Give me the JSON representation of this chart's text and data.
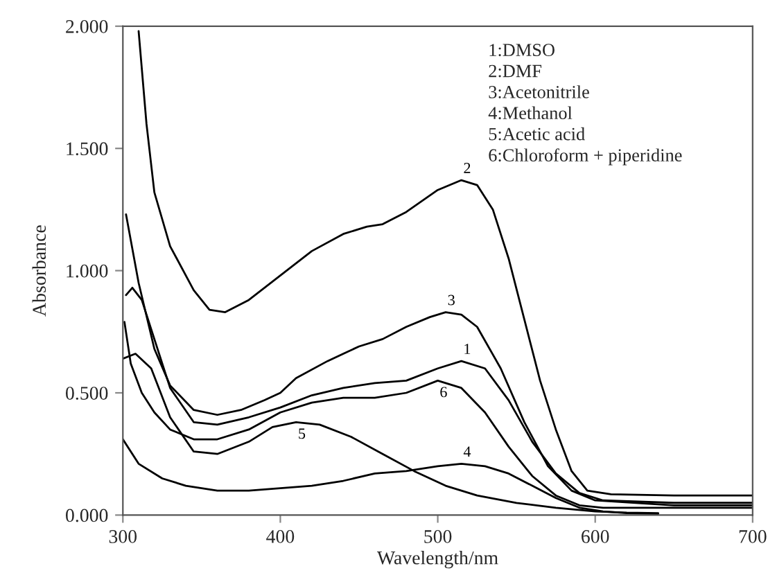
{
  "chart_data": {
    "type": "line",
    "xlabel": "Wavelength/nm",
    "ylabel": "Absorbance",
    "xlim": [
      300,
      700
    ],
    "xticks": [
      300,
      400,
      500,
      600,
      700
    ],
    "ylim": [
      0,
      2
    ],
    "yticks": [
      {
        "value": 0,
        "label": "0.000"
      },
      {
        "value": 0.5,
        "label": "0.500"
      },
      {
        "value": 1,
        "label": "1.000"
      },
      {
        "value": 1.5,
        "label": "1.500"
      },
      {
        "value": 2,
        "label": "2.000"
      }
    ],
    "grid": false,
    "legend": false,
    "marker": "none",
    "line_style": "solid",
    "annotations": [
      "1:DMSO",
      "2:DMF",
      "3:Acetonitrile",
      "4:Methanol",
      "5:Acetic acid",
      "6:Chloroform + piperidine"
    ],
    "series": [
      {
        "name": "1",
        "color": "#000000",
        "x": [
          302,
          306,
          312,
          320,
          330,
          345,
          360,
          380,
          400,
          420,
          440,
          460,
          480,
          500,
          515,
          530,
          545,
          560,
          575,
          590,
          605,
          650,
          700
        ],
        "values": [
          0.9,
          0.93,
          0.88,
          0.72,
          0.52,
          0.38,
          0.37,
          0.4,
          0.44,
          0.49,
          0.52,
          0.54,
          0.55,
          0.6,
          0.63,
          0.6,
          0.47,
          0.3,
          0.17,
          0.09,
          0.06,
          0.05,
          0.05
        ]
      },
      {
        "name": "2",
        "color": "#000000",
        "x": [
          310,
          315,
          320,
          330,
          345,
          355,
          365,
          380,
          400,
          420,
          440,
          455,
          465,
          480,
          500,
          515,
          525,
          535,
          545,
          555,
          565,
          575,
          585,
          595,
          610,
          650,
          700
        ],
        "values": [
          1.98,
          1.6,
          1.32,
          1.1,
          0.92,
          0.84,
          0.83,
          0.88,
          0.98,
          1.08,
          1.15,
          1.18,
          1.19,
          1.24,
          1.33,
          1.37,
          1.35,
          1.25,
          1.05,
          0.8,
          0.55,
          0.35,
          0.18,
          0.1,
          0.085,
          0.08,
          0.08
        ]
      },
      {
        "name": "3",
        "color": "#000000",
        "x": [
          302,
          310,
          320,
          330,
          345,
          360,
          375,
          390,
          400,
          410,
          430,
          450,
          465,
          480,
          495,
          505,
          515,
          525,
          540,
          555,
          570,
          585,
          600,
          650,
          700
        ],
        "values": [
          1.23,
          0.95,
          0.68,
          0.53,
          0.43,
          0.41,
          0.43,
          0.47,
          0.5,
          0.56,
          0.63,
          0.69,
          0.72,
          0.77,
          0.81,
          0.83,
          0.82,
          0.77,
          0.6,
          0.38,
          0.2,
          0.1,
          0.06,
          0.04,
          0.04
        ]
      },
      {
        "name": "4",
        "color": "#000000",
        "x": [
          300,
          310,
          325,
          340,
          360,
          380,
          400,
          420,
          440,
          460,
          480,
          500,
          515,
          530,
          545,
          560,
          575,
          590,
          605,
          620,
          640
        ],
        "values": [
          0.31,
          0.21,
          0.15,
          0.12,
          0.1,
          0.1,
          0.11,
          0.12,
          0.14,
          0.17,
          0.18,
          0.2,
          0.21,
          0.2,
          0.17,
          0.12,
          0.07,
          0.03,
          0.015,
          0.008,
          0.005
        ]
      },
      {
        "name": "5",
        "color": "#000000",
        "x": [
          300,
          308,
          318,
          330,
          345,
          360,
          380,
          395,
          410,
          425,
          445,
          465,
          485,
          505,
          525,
          550,
          575,
          600,
          620,
          640
        ],
        "values": [
          0.64,
          0.66,
          0.6,
          0.4,
          0.26,
          0.25,
          0.3,
          0.36,
          0.38,
          0.37,
          0.32,
          0.25,
          0.18,
          0.12,
          0.08,
          0.05,
          0.03,
          0.015,
          0.01,
          0.008
        ]
      },
      {
        "name": "6",
        "color": "#000000",
        "x": [
          301,
          305,
          312,
          320,
          330,
          345,
          360,
          380,
          400,
          420,
          440,
          460,
          480,
          500,
          515,
          530,
          545,
          560,
          575,
          590,
          605,
          650,
          700
        ],
        "values": [
          0.79,
          0.62,
          0.5,
          0.42,
          0.35,
          0.31,
          0.31,
          0.35,
          0.42,
          0.46,
          0.48,
          0.48,
          0.5,
          0.55,
          0.52,
          0.42,
          0.28,
          0.16,
          0.08,
          0.04,
          0.03,
          0.03,
          0.03
        ]
      }
    ]
  }
}
